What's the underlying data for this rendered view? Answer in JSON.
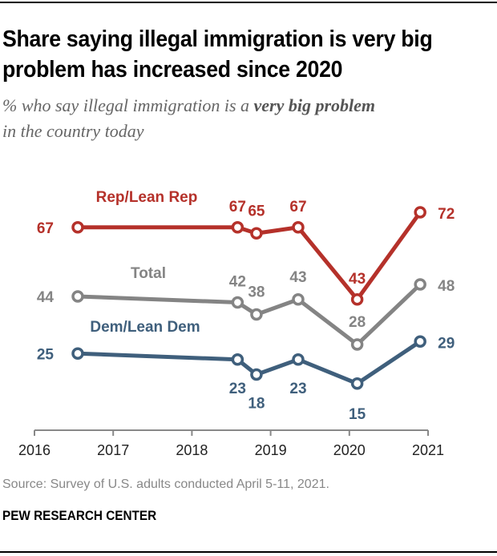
{
  "title": "Share saying illegal immigration is very big problem has increased since 2020",
  "subtitle": {
    "prefix": "% who say illegal immigration is a ",
    "bold": "very big problem",
    "suffix": " in the country today"
  },
  "source": "Source: Survey of U.S. adults conducted April 5-11, 2021.",
  "brand": "PEW RESEARCH CENTER",
  "chart_data": {
    "type": "line",
    "title": "Share saying illegal immigration is very big problem has increased since 2020",
    "xlabel": "",
    "ylabel": "",
    "x_ticks": [
      "2016",
      "2017",
      "2018",
      "2019",
      "2020",
      "2021"
    ],
    "x": [
      2016.55,
      2018.58,
      2018.82,
      2019.35,
      2020.1,
      2020.9
    ],
    "xlim": [
      2016,
      2021
    ],
    "ylim": [
      0,
      80
    ],
    "grid": false,
    "legend": "inline-labels",
    "series": [
      {
        "name": "Rep/Lean Rep",
        "color": "#b5312a",
        "values": [
          67,
          67,
          65,
          67,
          43,
          72
        ]
      },
      {
        "name": "Total",
        "color": "#848484",
        "values": [
          44,
          42,
          38,
          43,
          28,
          48
        ]
      },
      {
        "name": "Dem/Lean Dem",
        "color": "#3f5f7c",
        "values": [
          25,
          23,
          18,
          23,
          15,
          29
        ]
      }
    ]
  }
}
